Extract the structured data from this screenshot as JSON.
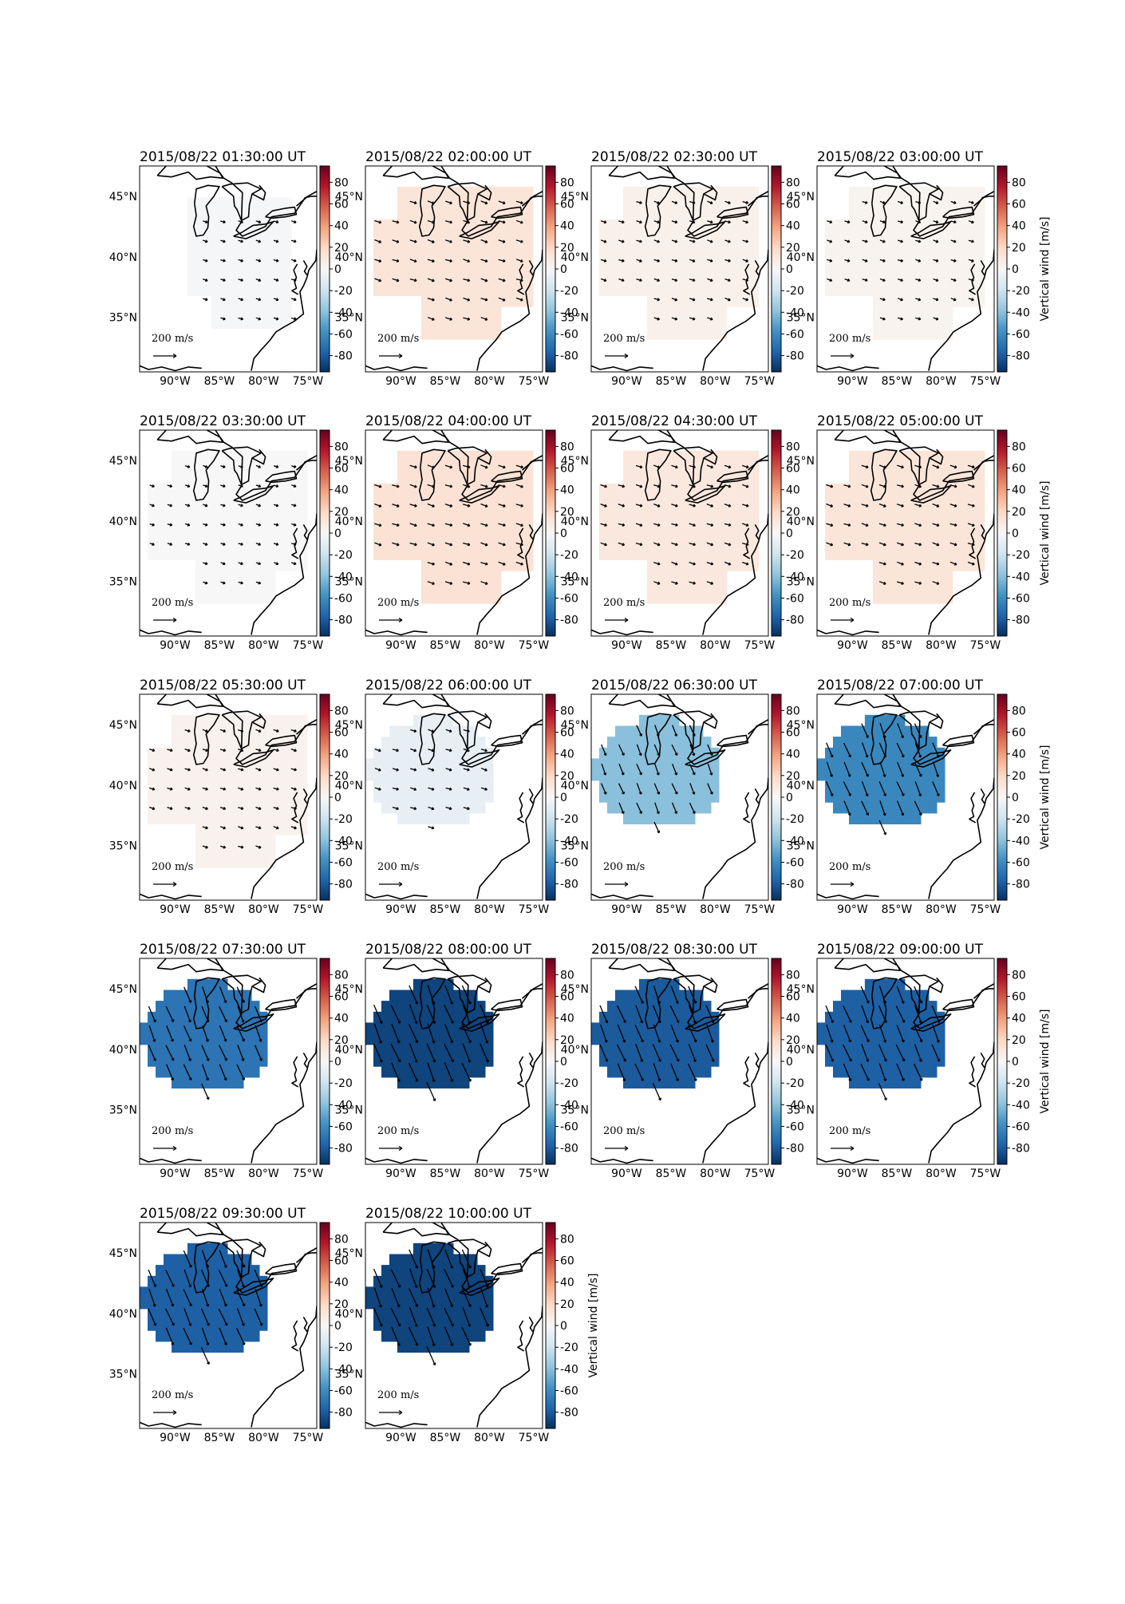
{
  "figure": {
    "colorbar_label": "Vertical wind [m/s]",
    "colorbar_ticks": [
      80,
      60,
      40,
      20,
      0,
      -20,
      -40,
      -60,
      -80
    ],
    "colorbar_range": [
      -95,
      95
    ],
    "colormap": "RdBu_r",
    "lon_ticks": [
      "90°W",
      "85°W",
      "80°W",
      "75°W"
    ],
    "lat_ticks": [
      "45°N",
      "40°N",
      "35°N"
    ],
    "reference_arrow_label": "200 m/s",
    "reference_arrow_value": 200,
    "region": "Great Lakes / eastern United States",
    "panels": [
      {
        "title": "2015/08/22 01:30:00 UT",
        "vertical_wind": -1,
        "region": "east",
        "colorbar_label": false
      },
      {
        "title": "2015/08/22 02:00:00 UT",
        "vertical_wind": 12,
        "region": "full",
        "colorbar_label": false
      },
      {
        "title": "2015/08/22 02:30:00 UT",
        "vertical_wind": 5,
        "region": "full",
        "colorbar_label": false
      },
      {
        "title": "2015/08/22 03:00:00 UT",
        "vertical_wind": 3,
        "region": "full",
        "colorbar_label": true
      },
      {
        "title": "2015/08/22 03:30:00 UT",
        "vertical_wind": 0,
        "region": "full",
        "colorbar_label": false
      },
      {
        "title": "2015/08/22 04:00:00 UT",
        "vertical_wind": 14,
        "region": "full",
        "colorbar_label": false
      },
      {
        "title": "2015/08/22 04:30:00 UT",
        "vertical_wind": 10,
        "region": "full",
        "colorbar_label": false
      },
      {
        "title": "2015/08/22 05:00:00 UT",
        "vertical_wind": 12,
        "region": "full",
        "colorbar_label": true
      },
      {
        "title": "2015/08/22 05:30:00 UT",
        "vertical_wind": 4,
        "region": "full",
        "colorbar_label": false
      },
      {
        "title": "2015/08/22 06:00:00 UT",
        "vertical_wind": -8,
        "region": "west",
        "colorbar_label": false
      },
      {
        "title": "2015/08/22 06:30:00 UT",
        "vertical_wind": -40,
        "region": "west",
        "colorbar_label": false
      },
      {
        "title": "2015/08/22 07:00:00 UT",
        "vertical_wind": -62,
        "region": "west",
        "colorbar_label": true
      },
      {
        "title": "2015/08/22 07:30:00 UT",
        "vertical_wind": -70,
        "region": "west",
        "colorbar_label": false
      },
      {
        "title": "2015/08/22 08:00:00 UT",
        "vertical_wind": -88,
        "region": "west",
        "colorbar_label": false
      },
      {
        "title": "2015/08/22 08:30:00 UT",
        "vertical_wind": -80,
        "region": "west",
        "colorbar_label": false
      },
      {
        "title": "2015/08/22 09:00:00 UT",
        "vertical_wind": -78,
        "region": "west",
        "colorbar_label": true
      },
      {
        "title": "2015/08/22 09:30:00 UT",
        "vertical_wind": -78,
        "region": "west",
        "colorbar_label": false
      },
      {
        "title": "2015/08/22 10:00:00 UT",
        "vertical_wind": -88,
        "region": "west",
        "colorbar_label": true
      }
    ]
  }
}
